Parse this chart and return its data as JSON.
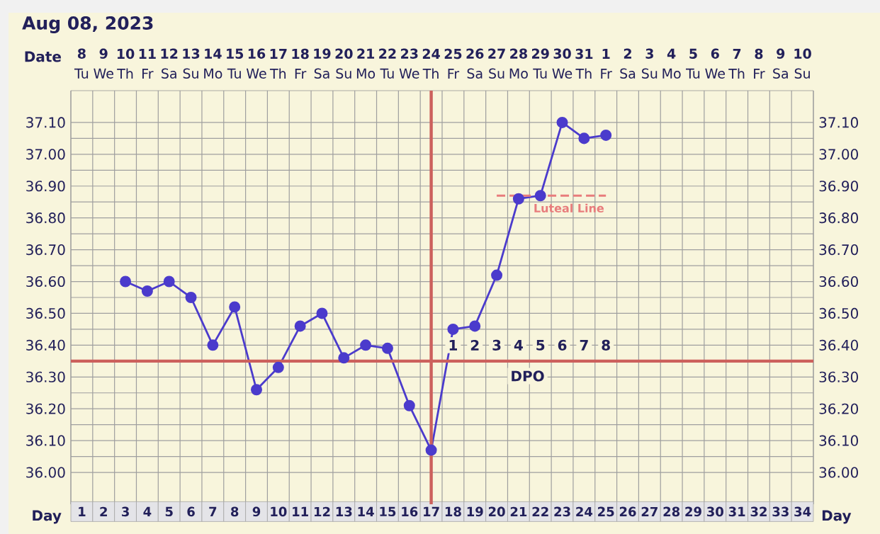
{
  "chart_data": {
    "type": "line",
    "title": "Aug 08, 2023",
    "xlabel": "Day",
    "x2label": "Date",
    "xlim": [
      0.5,
      34.5
    ],
    "xticks": [
      1,
      2,
      3,
      4,
      5,
      6,
      7,
      8,
      9,
      10,
      11,
      12,
      13,
      14,
      15,
      16,
      17,
      18,
      19,
      20,
      21,
      22,
      23,
      24,
      25,
      26,
      27,
      28,
      29,
      30,
      31,
      32,
      33,
      34
    ],
    "x2lim": [
      "2023-08-07T12:00",
      "2023-09-10T12:00"
    ],
    "x2ticks": [
      {
        "value": "2023-08-08",
        "label": "**8** Tu"
      },
      {
        "value": "2023-08-09",
        "label": "**9** We"
      },
      {
        "value": "2023-08-10",
        "label": "**10** Th"
      },
      {
        "value": "2023-08-11",
        "label": "**11** Fr"
      },
      {
        "value": "2023-08-12",
        "label": "**12** Sa"
      },
      {
        "value": "2023-08-13",
        "label": "**13** Su"
      },
      {
        "value": "2023-08-14",
        "label": "**14** Mo"
      },
      {
        "value": "2023-08-15",
        "label": "**15** Tu"
      },
      {
        "value": "2023-08-16",
        "label": "**16** We"
      },
      {
        "value": "2023-08-17",
        "label": "**17** Th"
      },
      {
        "value": "2023-08-18",
        "label": "**18** Fr"
      },
      {
        "value": "2023-08-19",
        "label": "**19** Sa"
      },
      {
        "value": "2023-08-20",
        "label": "**20** Su"
      },
      {
        "value": "2023-08-21",
        "label": "**21** Mo"
      },
      {
        "value": "2023-08-22",
        "label": "**22** Tu"
      },
      {
        "value": "2023-08-23",
        "label": "**23** We"
      },
      {
        "value": "2023-08-24",
        "label": "**24** Th"
      },
      {
        "value": "2023-08-25",
        "label": "**25** Fr"
      },
      {
        "value": "2023-08-26",
        "label": "**26** Sa"
      },
      {
        "value": "2023-08-27",
        "label": "**27** Su"
      },
      {
        "value": "2023-08-28",
        "label": "**28** Mo"
      },
      {
        "value": "2023-08-29",
        "label": "**29** Tu"
      },
      {
        "value": "2023-08-30",
        "label": "**30** We"
      },
      {
        "value": "2023-08-31",
        "label": "**31** Th"
      },
      {
        "value": "2023-09-01",
        "label": "**1** Fr"
      },
      {
        "value": "2023-09-02",
        "label": "**2** Sa"
      },
      {
        "value": "2023-09-03",
        "label": "**3** Su"
      },
      {
        "value": "2023-09-04",
        "label": "**4** Mo"
      },
      {
        "value": "2023-09-05",
        "label": "**5** Tu"
      },
      {
        "value": "2023-09-06",
        "label": "**6** We"
      },
      {
        "value": "2023-09-07",
        "label": "**7** Th"
      },
      {
        "value": "2023-09-08",
        "label": "**8** Fr"
      },
      {
        "value": "2023-09-09",
        "label": "**9** Sa"
      },
      {
        "value": "2023-09-10",
        "label": "**10** Su"
      }
    ],
    "ylim": [
      35.9,
      37.2
    ],
    "yticks": [
      {
        "value": 36.0,
        "label": "36.00"
      },
      {
        "value": 36.1,
        "label": "36.10"
      },
      {
        "value": 36.2,
        "label": "36.20"
      },
      {
        "value": 36.3,
        "label": "36.30"
      },
      {
        "value": 36.4,
        "label": "36.40"
      },
      {
        "value": 36.5,
        "label": "36.50"
      },
      {
        "value": 36.6,
        "label": "36.60"
      },
      {
        "value": 36.7,
        "label": "36.70"
      },
      {
        "value": 36.8,
        "label": "36.80"
      },
      {
        "value": 36.9,
        "label": "36.90"
      },
      {
        "value": 37.0,
        "label": "37.00"
      },
      {
        "value": 37.1,
        "label": "37.10"
      }
    ],
    "y2lim": [
      35.9,
      37.2
    ],
    "y2ticks": [
      {
        "value": 36.0,
        "label": "36.00"
      },
      {
        "value": 36.1,
        "label": "36.10"
      },
      {
        "value": 36.2,
        "label": "36.20"
      },
      {
        "value": 36.3,
        "label": "36.30"
      },
      {
        "value": 36.4,
        "label": "36.40"
      },
      {
        "value": 36.5,
        "label": "36.50"
      },
      {
        "value": 36.6,
        "label": "36.60"
      },
      {
        "value": 36.7,
        "label": "36.70"
      },
      {
        "value": 36.8,
        "label": "36.80"
      },
      {
        "value": 36.9,
        "label": "36.90"
      },
      {
        "value": 37.0,
        "label": "37.00"
      },
      {
        "value": 37.1,
        "label": "37.10"
      }
    ],
    "grid": true,
    "marker": "circle",
    "series": [
      {
        "color": "#4b3bcc",
        "x": [
          3,
          4,
          5,
          6,
          7,
          8,
          9,
          10,
          11,
          12,
          13,
          14,
          15,
          16,
          17,
          18,
          19,
          20,
          21,
          22,
          23,
          24,
          25
        ],
        "values": [
          36.6,
          36.57,
          36.6,
          36.55,
          36.4,
          36.52,
          36.26,
          36.33,
          36.46,
          36.5,
          36.36,
          36.4,
          36.39,
          36.21,
          36.07,
          36.45,
          36.46,
          36.62,
          36.86,
          36.87,
          37.1,
          37.05,
          37.06
        ]
      },
      {
        "name": "Luteal Line",
        "type": "line",
        "color": "#e87c7c",
        "line_style": "dashed",
        "marker": "none",
        "x": [
          20,
          25
        ],
        "values": [
          36.87,
          36.87
        ]
      }
    ],
    "ref_lines": [
      {
        "axis": "x",
        "value": 17,
        "color": "#cc605c"
      },
      {
        "axis": "y",
        "value": 36.35,
        "color": "#cc605c"
      }
    ],
    "annotations": [
      {
        "text": "1",
        "x": 18,
        "y": 36.4
      },
      {
        "text": "2",
        "x": 19,
        "y": 36.4
      },
      {
        "text": "3",
        "x": 20,
        "y": 36.4
      },
      {
        "text": "4",
        "x": 21,
        "y": 36.4
      },
      {
        "text": "5",
        "x": 22,
        "y": 36.4
      },
      {
        "text": "6",
        "x": 23,
        "y": 36.4
      },
      {
        "text": "7",
        "x": 24,
        "y": 36.4
      },
      {
        "text": "8",
        "x": 25,
        "y": 36.4
      },
      "DPO"
    ]
  }
}
